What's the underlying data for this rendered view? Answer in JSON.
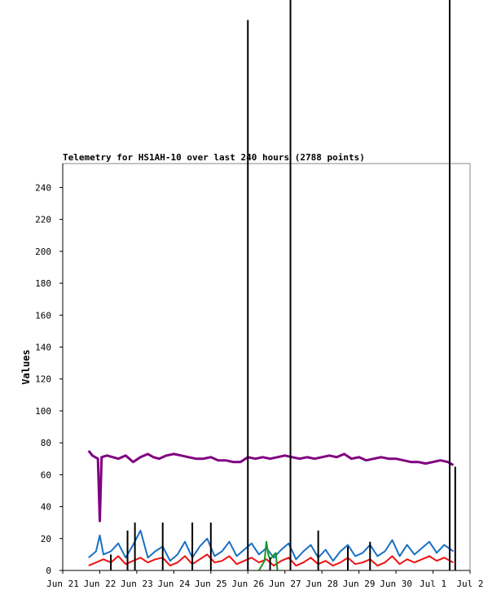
{
  "chart_data": {
    "type": "line",
    "title": "Telemetry for HS1AH-10 over last 240 hours (2788 points)",
    "xlabel": "",
    "ylabel": "Values",
    "x_unit": "days (Jun 21 = 0)",
    "xlim": [
      0,
      11
    ],
    "ylim": [
      0,
      255
    ],
    "y_ticks": [
      0,
      20,
      40,
      60,
      80,
      100,
      120,
      140,
      160,
      180,
      200,
      220,
      240
    ],
    "x_ticks": [
      {
        "x": 0,
        "label": "Jun 21"
      },
      {
        "x": 1,
        "label": "Jun 22"
      },
      {
        "x": 2,
        "label": "Jun 23"
      },
      {
        "x": 3,
        "label": "Jun 24"
      },
      {
        "x": 4,
        "label": "Jun 25"
      },
      {
        "x": 5,
        "label": "Jun 26"
      },
      {
        "x": 6,
        "label": "Jun 27"
      },
      {
        "x": 7,
        "label": "Jun 28"
      },
      {
        "x": 8,
        "label": "Jun 29"
      },
      {
        "x": 9,
        "label": "Jun 30"
      },
      {
        "x": 10,
        "label": "Jul 1"
      },
      {
        "x": 11,
        "label": "Jul 2"
      }
    ],
    "grid": false,
    "colors": {
      "purple": "#800080",
      "blue": "#1a6fc4",
      "red": "#ee1111",
      "green": "#119922",
      "black": "#000000",
      "axis": "#000000",
      "frame": "#888888"
    },
    "series": [
      {
        "color": "#800080",
        "x": [
          0.7,
          0.8,
          0.95,
          1.0,
          1.05,
          1.2,
          1.5,
          1.7,
          1.9,
          2.1,
          2.3,
          2.45,
          2.6,
          2.8,
          3.0,
          3.2,
          3.4,
          3.6,
          3.8,
          4.0,
          4.2,
          4.4,
          4.6,
          4.8,
          5.0,
          5.2,
          5.4,
          5.6,
          5.8,
          6.0,
          6.2,
          6.4,
          6.6,
          6.8,
          7.0,
          7.2,
          7.4,
          7.6,
          7.8,
          8.0,
          8.2,
          8.4,
          8.6,
          8.8,
          9.0,
          9.2,
          9.4,
          9.6,
          9.8,
          10.0,
          10.2,
          10.4,
          10.55
        ],
        "values": [
          75,
          72,
          70,
          31,
          71,
          72,
          70,
          72,
          68,
          71,
          73,
          71,
          70,
          72,
          73,
          72,
          71,
          70,
          70,
          71,
          69,
          69,
          68,
          68,
          71,
          70,
          71,
          70,
          71,
          72,
          71,
          70,
          71,
          70,
          71,
          72,
          71,
          73,
          70,
          71,
          69,
          70,
          71,
          70,
          70,
          69,
          68,
          68,
          67,
          68,
          69,
          68,
          66
        ]
      },
      {
        "color": "#1a6fc4",
        "x": [
          0.7,
          0.9,
          1.0,
          1.1,
          1.3,
          1.5,
          1.7,
          1.9,
          2.1,
          2.3,
          2.5,
          2.7,
          2.9,
          3.1,
          3.3,
          3.5,
          3.7,
          3.9,
          4.1,
          4.3,
          4.5,
          4.7,
          4.9,
          5.1,
          5.3,
          5.5,
          5.7,
          5.9,
          6.1,
          6.3,
          6.5,
          6.7,
          6.9,
          7.1,
          7.3,
          7.5,
          7.7,
          7.9,
          8.1,
          8.3,
          8.5,
          8.7,
          8.9,
          9.1,
          9.3,
          9.5,
          9.7,
          9.9,
          10.1,
          10.3,
          10.55
        ],
        "values": [
          8,
          12,
          22,
          10,
          12,
          17,
          8,
          16,
          25,
          8,
          12,
          15,
          6,
          10,
          18,
          8,
          15,
          20,
          9,
          12,
          18,
          9,
          13,
          17,
          10,
          14,
          8,
          13,
          17,
          7,
          12,
          16,
          8,
          13,
          6,
          12,
          16,
          9,
          11,
          16,
          9,
          12,
          19,
          9,
          16,
          10,
          14,
          18,
          11,
          16,
          12
        ]
      },
      {
        "color": "#ee1111",
        "x": [
          0.7,
          0.9,
          1.1,
          1.3,
          1.5,
          1.7,
          1.9,
          2.1,
          2.3,
          2.5,
          2.7,
          2.9,
          3.1,
          3.3,
          3.5,
          3.7,
          3.9,
          4.1,
          4.3,
          4.5,
          4.7,
          4.9,
          5.1,
          5.3,
          5.5,
          5.7,
          5.9,
          6.1,
          6.3,
          6.5,
          6.7,
          6.9,
          7.1,
          7.3,
          7.5,
          7.7,
          7.9,
          8.1,
          8.3,
          8.5,
          8.7,
          8.9,
          9.1,
          9.3,
          9.5,
          9.7,
          9.9,
          10.1,
          10.3,
          10.55
        ],
        "values": [
          3,
          5,
          7,
          5,
          9,
          4,
          6,
          8,
          5,
          7,
          8,
          3,
          5,
          9,
          4,
          7,
          10,
          5,
          6,
          9,
          4,
          6,
          8,
          5,
          7,
          3,
          6,
          8,
          3,
          5,
          8,
          4,
          6,
          3,
          5,
          8,
          4,
          5,
          7,
          3,
          5,
          9,
          4,
          7,
          5,
          7,
          9,
          6,
          8,
          5
        ]
      },
      {
        "color": "#119922",
        "x": [
          5.3,
          5.45,
          5.5,
          5.55,
          5.6,
          5.75,
          5.8
        ],
        "values": [
          0,
          6,
          18,
          10,
          7,
          11,
          0
        ]
      }
    ],
    "spikes": [
      {
        "x": 1.3,
        "value": 10
      },
      {
        "x": 1.75,
        "value": 25
      },
      {
        "x": 1.95,
        "value": 30
      },
      {
        "x": 2.7,
        "value": 30
      },
      {
        "x": 3.5,
        "value": 30
      },
      {
        "x": 4.0,
        "value": 30
      },
      {
        "x": 5.0,
        "value": 345
      },
      {
        "x": 5.6,
        "value": 8
      },
      {
        "x": 6.15,
        "value": 393
      },
      {
        "x": 6.9,
        "value": 25
      },
      {
        "x": 7.7,
        "value": 15
      },
      {
        "x": 8.3,
        "value": 18
      },
      {
        "x": 10.45,
        "value": 393
      },
      {
        "x": 10.6,
        "value": 65
      }
    ]
  }
}
